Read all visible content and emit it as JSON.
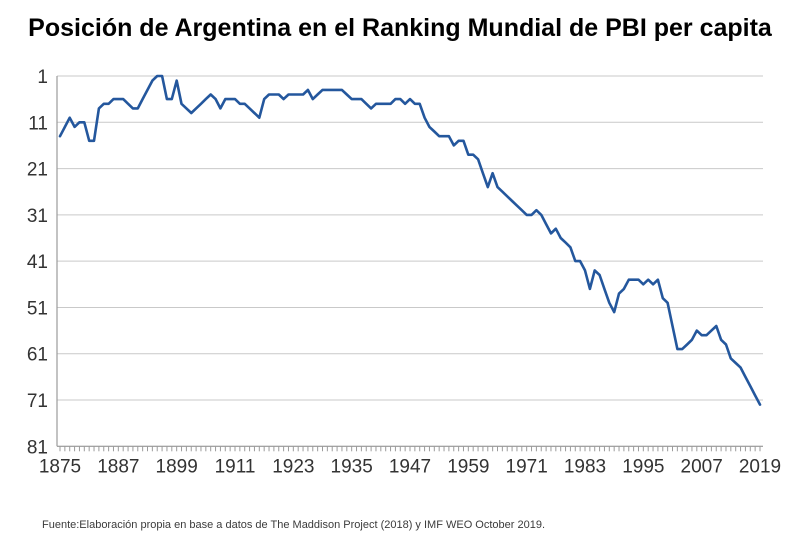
{
  "title": "Posición de Argentina en el Ranking Mundial de PBI per capita",
  "source_note": "Fuente:Elaboración propia en base a datos de The Maddison Project (2018) y IMF WEO October 2019.",
  "colors": {
    "line": "#24579D",
    "grid": "#C9C9C9",
    "axis": "#9B9B9B",
    "tick": "#9B9B9B",
    "label": "#333333",
    "title": "#000000",
    "background": "#FFFFFF"
  },
  "chart_data": {
    "type": "line",
    "title": "Posición de Argentina en el Ranking Mundial de PBI per capita",
    "xlabel": "",
    "ylabel": "",
    "x_start": 1875,
    "x_step": 1,
    "x_ticks": [
      1875,
      1887,
      1899,
      1911,
      1923,
      1935,
      1947,
      1959,
      1971,
      1983,
      1995,
      2007,
      2019
    ],
    "y_ticks": [
      1,
      11,
      21,
      31,
      41,
      51,
      61,
      71,
      81
    ],
    "y_axis_inverted": true,
    "ylim": [
      1,
      81
    ],
    "xlim": [
      1875,
      2019
    ],
    "grid": "horizontal",
    "legend": "none",
    "series": [
      {
        "name": "Posición de Argentina en el ranking mundial de PBI per capita",
        "values": [
          14,
          12,
          10,
          12,
          11,
          11,
          15,
          15,
          8,
          7,
          7,
          6,
          6,
          6,
          7,
          8,
          8,
          6,
          4,
          2,
          1,
          1,
          6,
          6,
          2,
          7,
          8,
          9,
          8,
          7,
          6,
          5,
          6,
          8,
          6,
          6,
          6,
          7,
          7,
          8,
          9,
          10,
          6,
          5,
          5,
          5,
          6,
          5,
          5,
          5,
          5,
          4,
          6,
          5,
          4,
          4,
          4,
          4,
          4,
          5,
          6,
          6,
          6,
          7,
          8,
          7,
          7,
          7,
          7,
          6,
          6,
          7,
          6,
          7,
          7,
          10,
          12,
          13,
          14,
          14,
          14,
          16,
          15,
          15,
          18,
          18,
          19,
          22,
          25,
          22,
          25,
          26,
          27,
          28,
          29,
          30,
          31,
          31,
          30,
          31,
          33,
          35,
          34,
          36,
          37,
          38,
          41,
          41,
          43,
          47,
          43,
          44,
          47,
          50,
          52,
          48,
          47,
          45,
          45,
          45,
          46,
          45,
          46,
          45,
          49,
          50,
          55,
          60,
          60,
          59,
          58,
          56,
          57,
          57,
          56,
          55,
          58,
          59,
          62,
          63,
          64,
          66,
          68,
          70,
          72
        ]
      }
    ]
  }
}
